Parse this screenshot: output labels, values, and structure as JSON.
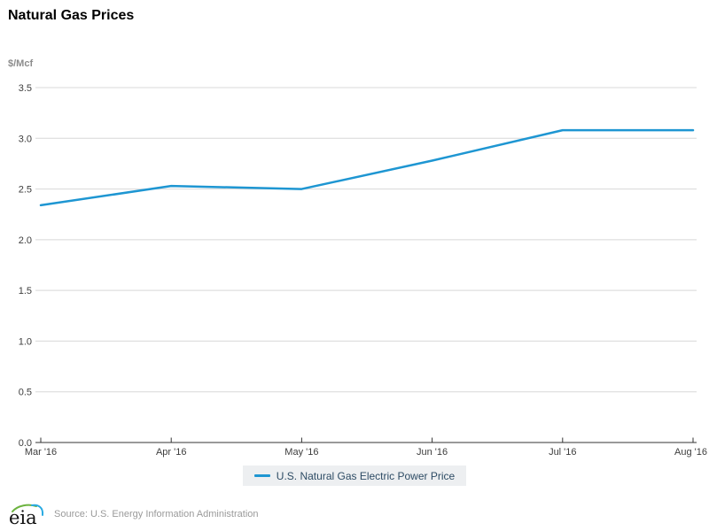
{
  "chart_data": {
    "type": "line",
    "title": "Natural Gas Prices",
    "ylabel": "$/Mcf",
    "xlabel": "",
    "categories": [
      "Mar '16",
      "Apr '16",
      "May '16",
      "Jun '16",
      "Jul '16",
      "Aug '16"
    ],
    "series": [
      {
        "name": "U.S. Natural Gas Electric Power Price",
        "color": "#1e96d2",
        "values": [
          2.34,
          2.53,
          2.5,
          2.78,
          3.08,
          3.08
        ]
      }
    ],
    "ylim": [
      0.0,
      3.5
    ],
    "ytick_labels": [
      "0.0",
      "0.5",
      "1.0",
      "1.5",
      "2.0",
      "2.5",
      "3.0",
      "3.5"
    ],
    "grid": true,
    "legend_position": "bottom-center"
  },
  "colors": {
    "line": "#1e96d2",
    "grid": "#d8d8d8",
    "axis": "#333333",
    "tick_label": "#3d3d3d",
    "legend_bg": "#edeff1",
    "legend_text": "#2d4b64",
    "source_text": "#9a9a9a",
    "logo_green": "#6cb33f",
    "logo_blue": "#29aae2"
  },
  "footer": {
    "logo_text": "eia",
    "source": "Source: U.S. Energy Information Administration"
  }
}
